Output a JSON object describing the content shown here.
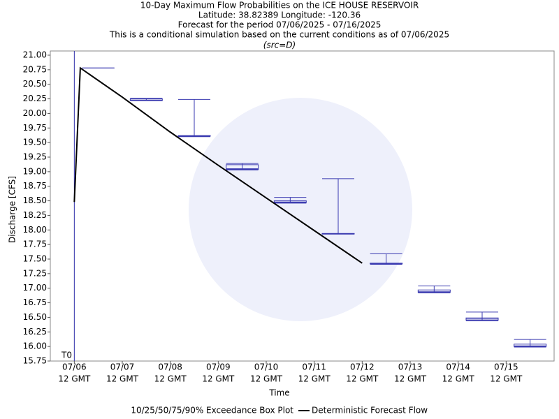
{
  "chart_data": {
    "type": "box",
    "title": [
      "10-Day Maximum Flow Probabilities on the ICE HOUSE RESERVOIR",
      "Latitude: 38.82389 Longitude: -120.36",
      "Forecast for the period 07/06/2025 - 07/16/2025",
      "This is a conditional simulation based on the current conditions as of 07/06/2025",
      "(src=D)"
    ],
    "x_label": "Time",
    "y_label": "Discharge [CFS]",
    "xlim": [
      "2025-07-06T00:00Z",
      "2025-07-16T12:00Z"
    ],
    "ylim": [
      15.75,
      21
    ],
    "xticks": [
      {
        "value": "2025-07-06T12:00Z",
        "label": [
          "07/06",
          "12 GMT"
        ]
      },
      {
        "value": "2025-07-07T12:00Z",
        "label": [
          "07/07",
          "12 GMT"
        ]
      },
      {
        "value": "2025-07-08T12:00Z",
        "label": [
          "07/08",
          "12 GMT"
        ]
      },
      {
        "value": "2025-07-09T12:00Z",
        "label": [
          "07/09",
          "12 GMT"
        ]
      },
      {
        "value": "2025-07-10T12:00Z",
        "label": [
          "07/10",
          "12 GMT"
        ]
      },
      {
        "value": "2025-07-11T12:00Z",
        "label": [
          "07/11",
          "12 GMT"
        ]
      },
      {
        "value": "2025-07-12T12:00Z",
        "label": [
          "07/12",
          "12 GMT"
        ]
      },
      {
        "value": "2025-07-13T12:00Z",
        "label": [
          "07/13",
          "12 GMT"
        ]
      },
      {
        "value": "2025-07-14T12:00Z",
        "label": [
          "07/14",
          "12 GMT"
        ]
      },
      {
        "value": "2025-07-15T12:00Z",
        "label": [
          "07/15",
          "12 GMT"
        ]
      }
    ],
    "yticks": [
      15.75,
      {
        "value": 16,
        "label": "16.00"
      },
      16.25,
      {
        "value": 16.5,
        "label": "16.50"
      },
      16.75,
      {
        "value": 17,
        "label": "17.00"
      },
      17.25,
      {
        "value": 17.5,
        "label": "17.50"
      },
      17.75,
      {
        "value": 18,
        "label": "18.00"
      },
      18.25,
      {
        "value": 18.5,
        "label": "18.50"
      },
      18.75,
      {
        "value": 19,
        "label": "19.00"
      },
      19.25,
      {
        "value": 19.5,
        "label": "19.50"
      },
      19.75,
      {
        "value": 20,
        "label": "20.00"
      },
      20.25,
      {
        "value": 20.5,
        "label": "20.50"
      },
      20.75,
      {
        "value": 21,
        "label": "21.00"
      }
    ],
    "marker_line": {
      "x": "2025-07-06T12:00Z",
      "label": "T0",
      "color": "#2a2aa8"
    },
    "boxes": {
      "name": "10/25/50/75/90% Exceedance Box Plot",
      "color": "#3a3ab0",
      "x": [
        "2025-07-07T00:00Z",
        "2025-07-08T00:00Z",
        "2025-07-09T00:00Z",
        "2025-07-10T00:00Z",
        "2025-07-11T00:00Z",
        "2025-07-12T00:00Z",
        "2025-07-13T00:00Z",
        "2025-07-14T00:00Z",
        "2025-07-15T00:00Z",
        "2025-07-16T00:00Z"
      ],
      "p10": [
        20.78,
        20.22,
        19.6,
        19.03,
        18.46,
        17.93,
        17.41,
        16.92,
        16.44,
        15.99
      ],
      "p25": [
        20.78,
        20.22,
        19.61,
        19.04,
        18.47,
        17.93,
        17.42,
        16.93,
        16.45,
        16.0
      ],
      "p50": [
        20.78,
        20.23,
        19.61,
        19.05,
        18.48,
        17.93,
        17.42,
        16.94,
        16.47,
        16.01
      ],
      "p75": [
        20.78,
        20.25,
        19.62,
        19.12,
        18.5,
        17.94,
        17.43,
        16.97,
        16.49,
        16.04
      ],
      "p90": [
        20.78,
        20.26,
        20.24,
        19.14,
        18.56,
        18.88,
        17.59,
        17.04,
        16.59,
        16.12
      ]
    },
    "series": [
      {
        "name": "Deterministic Forecast Flow",
        "color": "#000000",
        "x": [
          "2025-07-06T12:00Z",
          "2025-07-06T15:00Z",
          "2025-07-07T12:00Z",
          "2025-07-08T12:00Z",
          "2025-07-09T12:00Z",
          "2025-07-10T12:00Z",
          "2025-07-11T12:00Z",
          "2025-07-12T12:00Z"
        ],
        "values": [
          18.48,
          20.78,
          20.28,
          19.68,
          19.11,
          18.55,
          17.99,
          17.43
        ]
      }
    ]
  }
}
